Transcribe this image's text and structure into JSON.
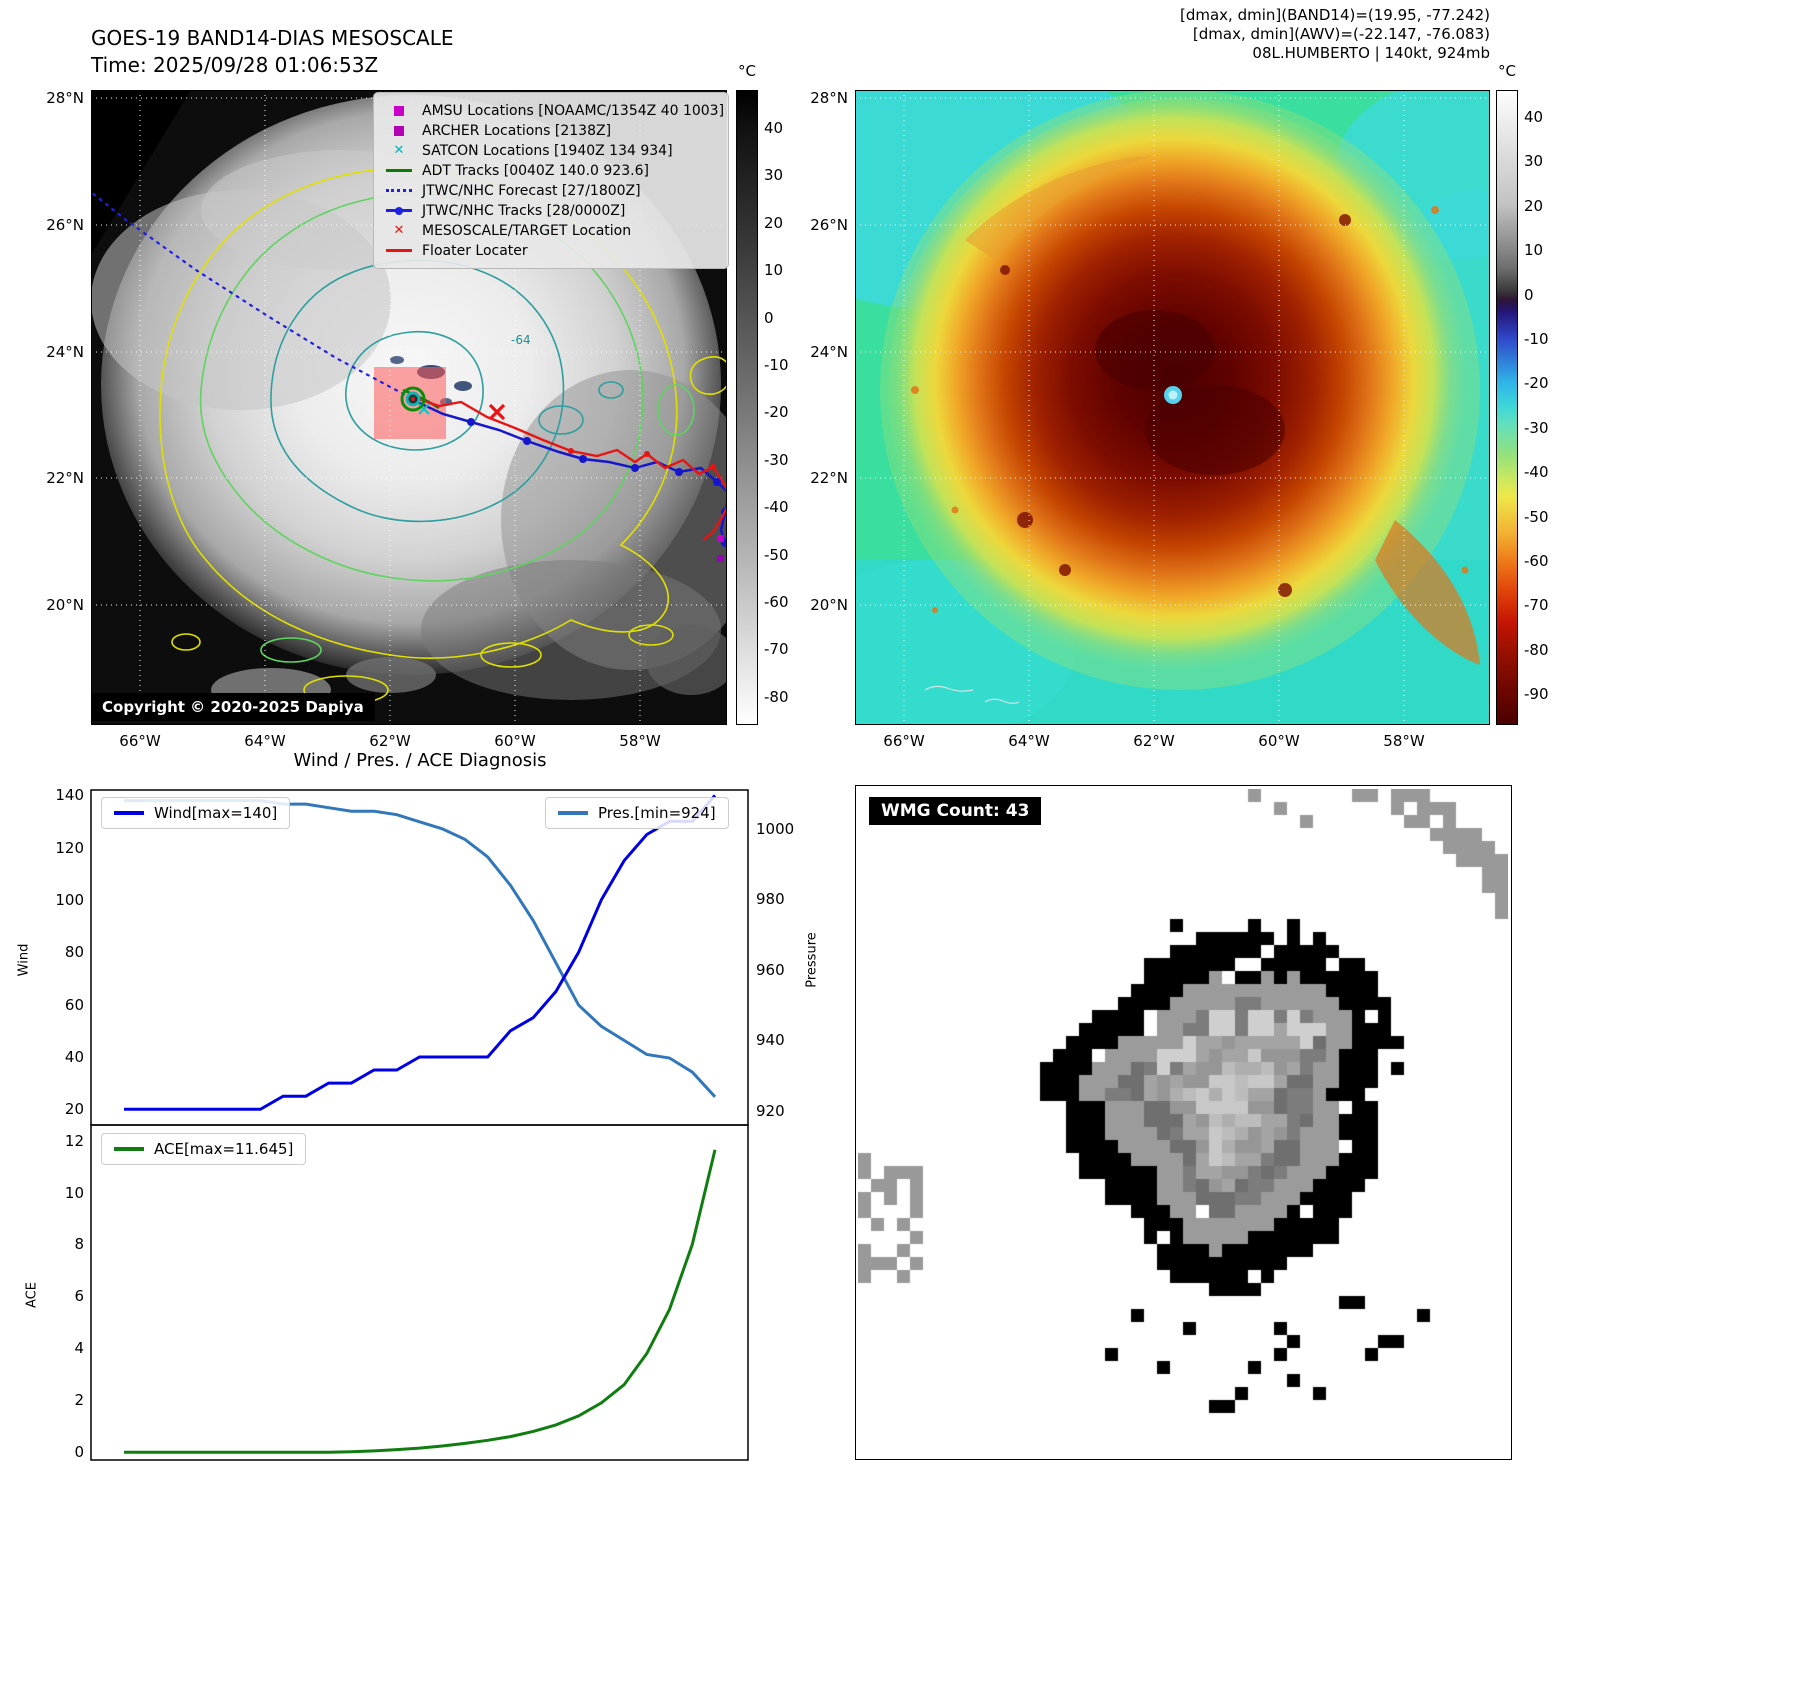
{
  "panel_tl": {
    "title": "GOES-19 BAND14-DIAS MESOSCALE",
    "subtitle": "Time: 2025/09/28 01:06:53Z",
    "copyright": "Copyright © 2020-2025 Dapiya",
    "contour_label": "-64",
    "colorbar": {
      "label": "°C",
      "ticks": [
        "40",
        "30",
        "20",
        "10",
        "0",
        "-10",
        "-20",
        "-30",
        "-40",
        "-50",
        "-60",
        "-70",
        "-80"
      ]
    },
    "lat_ticks": [
      "28°N",
      "26°N",
      "24°N",
      "22°N",
      "20°N"
    ],
    "lon_ticks": [
      "66°W",
      "64°W",
      "62°W",
      "60°W",
      "58°W"
    ],
    "legend": [
      {
        "label": "AMSU Locations [NOAAMC/1354Z 40 1003]",
        "marker": "square",
        "color": "#c800c8"
      },
      {
        "label": "ARCHER Locations [2138Z]",
        "marker": "square",
        "color": "#b400b4"
      },
      {
        "label": "SATCON Locations [1940Z 134 934]",
        "marker": "x",
        "color": "#00b4b4"
      },
      {
        "label": "ADT Tracks [0040Z 140.0 923.6]",
        "marker": "line",
        "color": "#0a7a0a"
      },
      {
        "label": "JTWC/NHC Forecast [27/1800Z]",
        "marker": "dotted",
        "color": "#1e1ee6"
      },
      {
        "label": "JTWC/NHC Tracks [28/0000Z]",
        "marker": "line-dot",
        "color": "#1e1ee6"
      },
      {
        "label": "MESOSCALE/TARGET Location",
        "marker": "x",
        "color": "#e81414"
      },
      {
        "label": "Floater Locater",
        "marker": "line",
        "color": "#e81414"
      }
    ]
  },
  "panel_tr": {
    "info_lines": [
      "[dmax, dmin](BAND14)=(19.95, -77.242)",
      "[dmax, dmin](AWV)=(-22.147, -76.083)",
      "08L.HUMBERTO | 140kt, 924mb"
    ],
    "colorbar": {
      "label": "°C",
      "ticks": [
        "40",
        "30",
        "20",
        "10",
        "0",
        "-10",
        "-20",
        "-30",
        "-40",
        "-50",
        "-60",
        "-70",
        "-80",
        "-90"
      ]
    },
    "lat_ticks": [
      "28°N",
      "26°N",
      "24°N",
      "22°N",
      "20°N"
    ],
    "lon_ticks": [
      "66°W",
      "64°W",
      "62°W",
      "60°W",
      "58°W"
    ]
  },
  "panel_br": {
    "wmg_label": "WMG Count: 43"
  },
  "chart_data": [
    {
      "type": "line",
      "title": "Wind / Pres. / ACE Diagnosis",
      "ylabel_left": "Wind",
      "ylabel_right": "Pressure",
      "yticks_left": [
        "20",
        "40",
        "60",
        "80",
        "100",
        "120",
        "140"
      ],
      "yticks_right": [
        "920",
        "940",
        "960",
        "980",
        "1000"
      ],
      "ylim_left": [
        14,
        142
      ],
      "ylim_right": [
        916,
        1011
      ],
      "legend_position": "upper corners",
      "grid": false,
      "series": [
        {
          "name": "Wind[max=140]",
          "color": "#0000e6",
          "axis": "left",
          "values": [
            20,
            20,
            20,
            20,
            20,
            20,
            20,
            25,
            25,
            30,
            30,
            35,
            35,
            40,
            40,
            40,
            40,
            50,
            55,
            65,
            80,
            100,
            115,
            125,
            130,
            130,
            140
          ]
        },
        {
          "name": "Pres.[min=924]",
          "color": "#3377bb",
          "axis": "right",
          "values": [
            1008,
            1008,
            1008,
            1008,
            1008,
            1008,
            1008,
            1007,
            1007,
            1006,
            1005,
            1005,
            1004,
            1002,
            1000,
            997,
            992,
            984,
            974,
            962,
            950,
            944,
            940,
            936,
            935,
            931,
            924
          ]
        }
      ]
    },
    {
      "type": "line",
      "ylabel": "ACE",
      "yticks": [
        "0",
        "2",
        "4",
        "6",
        "8",
        "10",
        "12"
      ],
      "ylim": [
        -0.3,
        12.6
      ],
      "grid": false,
      "series": [
        {
          "name": "ACE[max=11.645]",
          "color": "#0f7d0f",
          "values": [
            0,
            0,
            0,
            0,
            0,
            0,
            0,
            0,
            0,
            0,
            0.02,
            0.05,
            0.1,
            0.16,
            0.24,
            0.34,
            0.46,
            0.6,
            0.8,
            1.05,
            1.4,
            1.9,
            2.6,
            3.8,
            5.5,
            8.0,
            11.645
          ]
        }
      ]
    }
  ]
}
